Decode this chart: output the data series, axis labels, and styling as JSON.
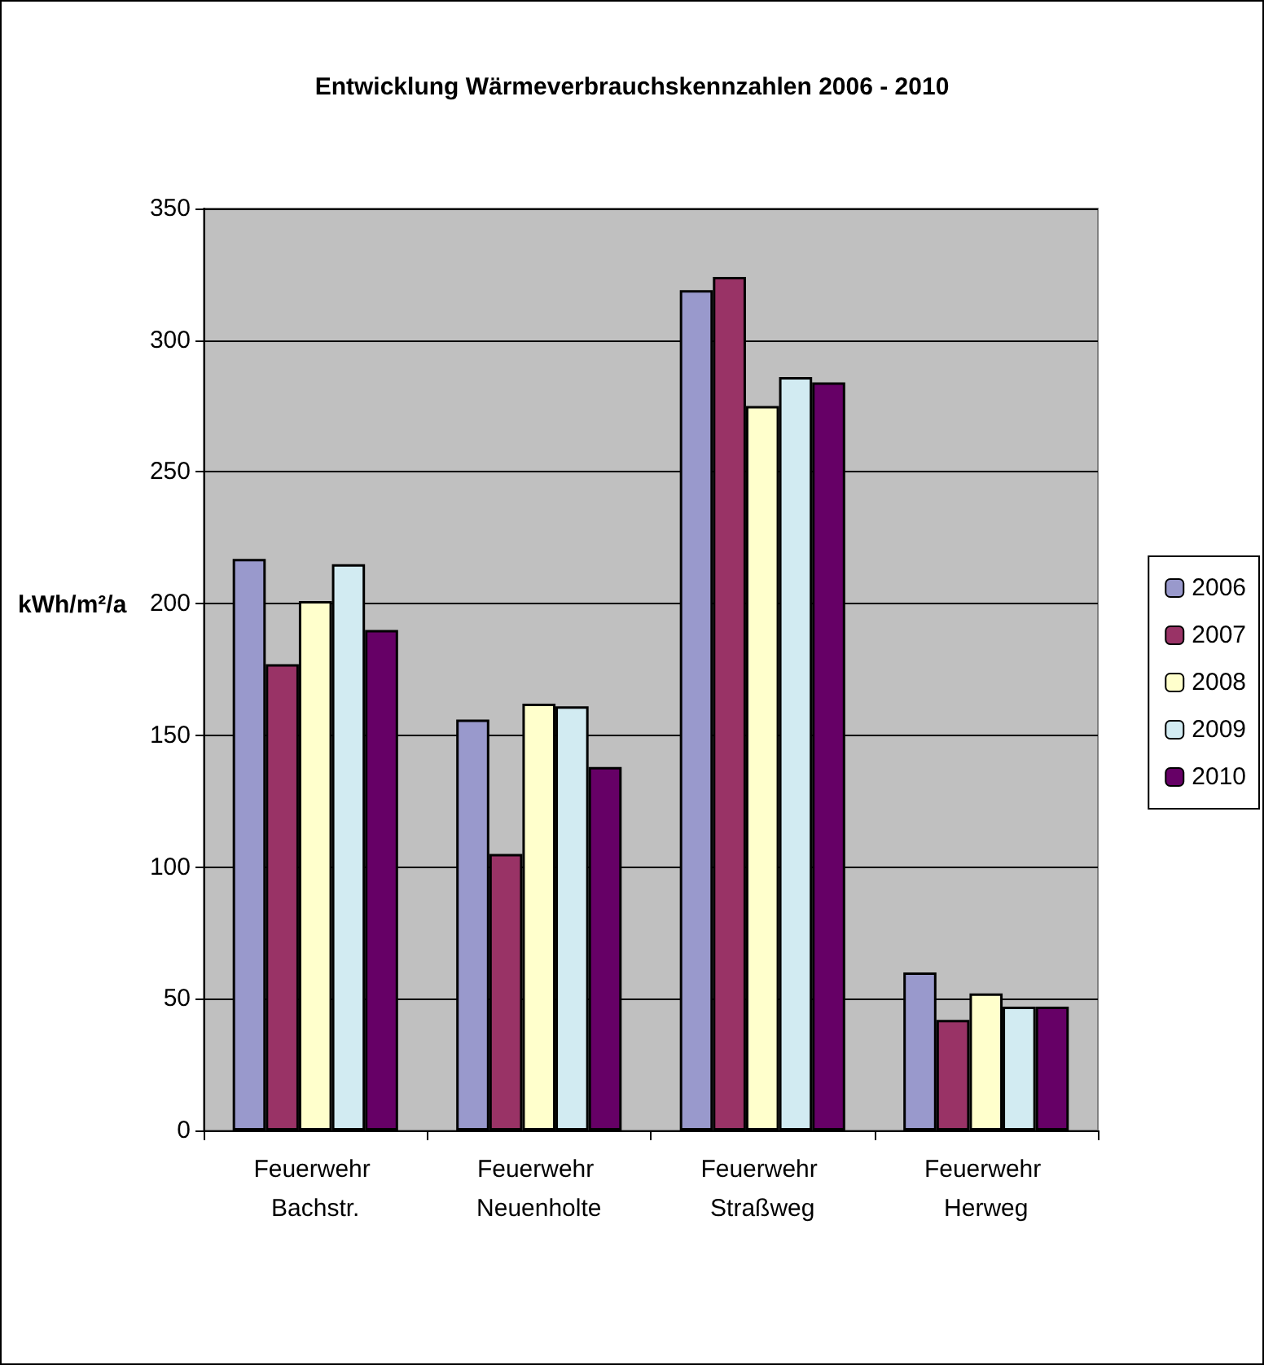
{
  "chart_data": {
    "type": "bar",
    "title": "Entwicklung Wärmeverbrauchskennzahlen 2006 - 2010",
    "ylabel": "kWh/m²/a",
    "categories": [
      "Feuerwehr Bachstr.",
      "Feuerwehr Neuenholte",
      "Feuerwehr Straßweg",
      "Feuerwehr Herweg"
    ],
    "series": [
      {
        "name": "2006",
        "color": "#9999cc",
        "values": [
          217,
          156,
          319,
          60
        ]
      },
      {
        "name": "2007",
        "color": "#993366",
        "values": [
          177,
          105,
          324,
          42
        ]
      },
      {
        "name": "2008",
        "color": "#ffffcc",
        "values": [
          201,
          162,
          275,
          52
        ]
      },
      {
        "name": "2009",
        "color": "#d2ebf2",
        "values": [
          215,
          161,
          286,
          47
        ]
      },
      {
        "name": "2010",
        "color": "#660066",
        "values": [
          190,
          138,
          284,
          47
        ]
      }
    ],
    "ylim": [
      0,
      350
    ],
    "yticks": [
      0,
      50,
      100,
      150,
      200,
      250,
      300,
      350
    ],
    "grid": "y",
    "legend": "right"
  }
}
